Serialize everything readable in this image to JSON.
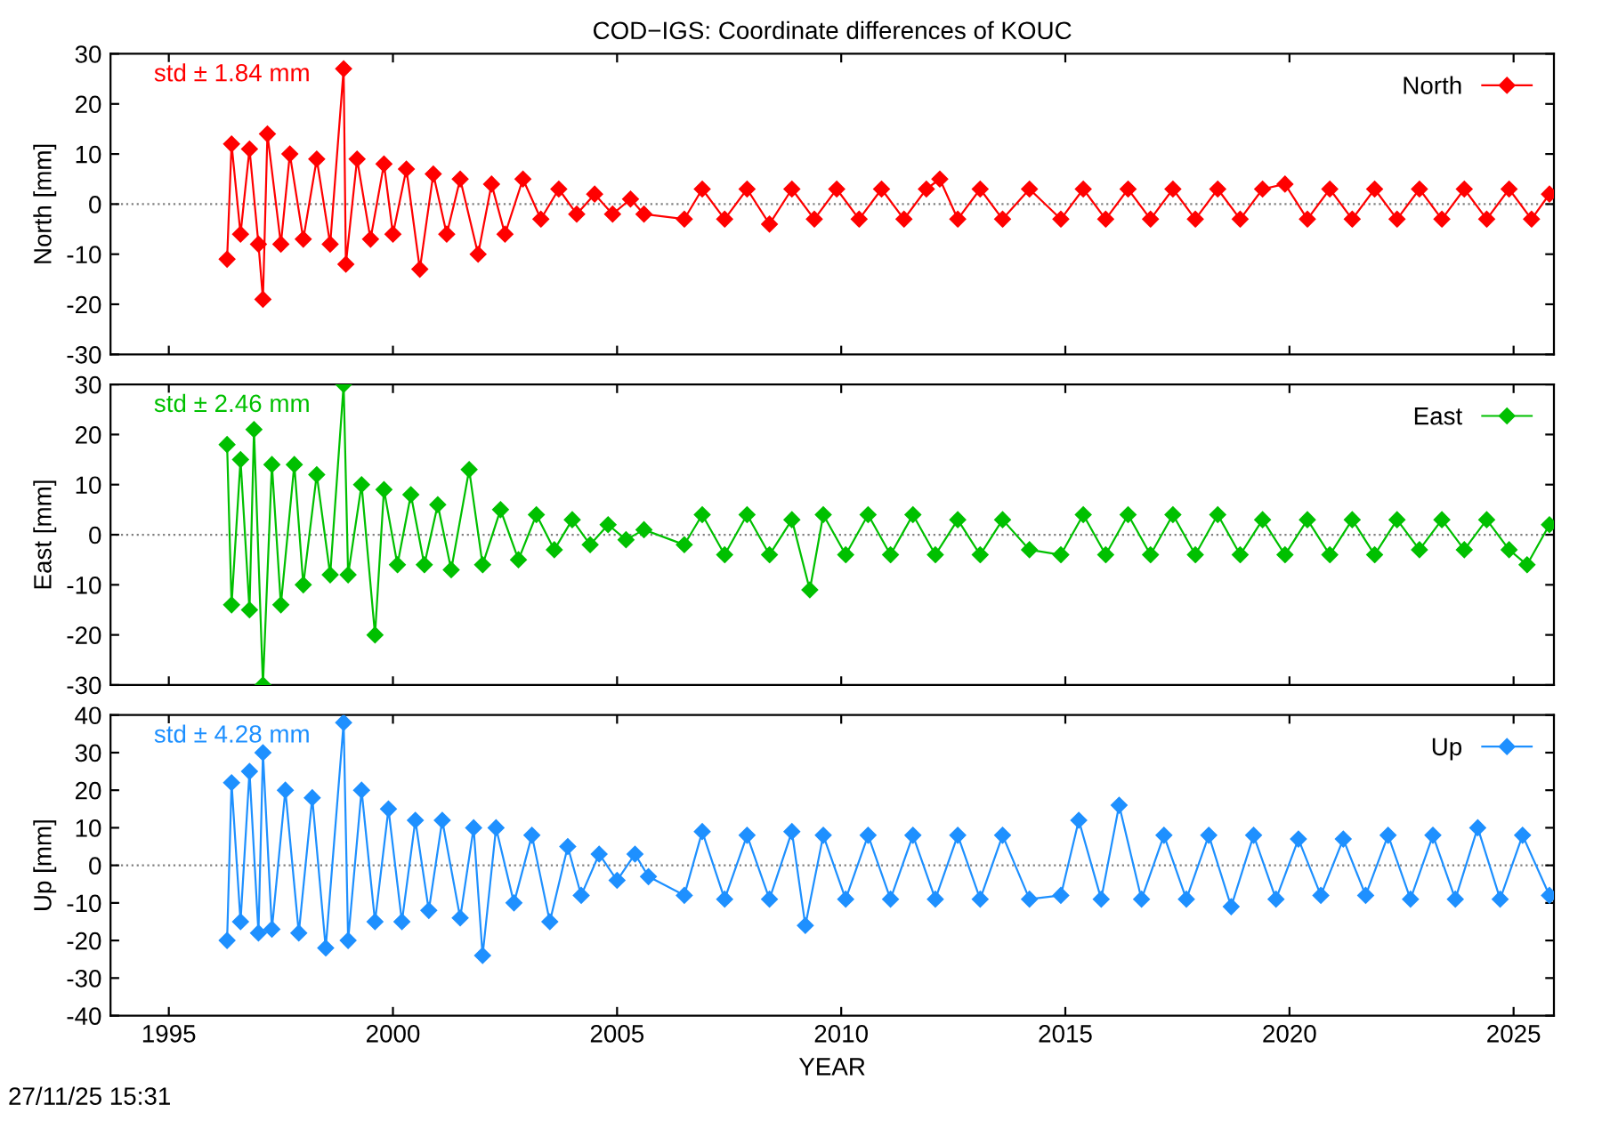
{
  "chart_data": [
    {
      "type": "line",
      "title": "COD−IGS: Coordinate differences of KOUC",
      "ylabel": "North [mm]",
      "xlim": [
        1993.7,
        2025.9
      ],
      "xticks": [
        1995,
        2000,
        2005,
        2010,
        2015,
        2020,
        2025
      ],
      "ylim": [
        -30,
        30
      ],
      "yticks": [
        -30,
        -20,
        -10,
        0,
        10,
        20,
        30
      ],
      "tick_labels": "y",
      "marker": "diamond",
      "legend": "top right",
      "grid": false,
      "annotations": [
        "std ± 1.84 mm"
      ],
      "ref_lines": [
        {
          "axis": "y",
          "value": 0,
          "line_style": "dotted",
          "color": "#808080"
        }
      ],
      "series": [
        {
          "name": "North",
          "color": "#ff0000",
          "x": [
            1996.3,
            1996.4,
            1996.6,
            1996.8,
            1997.0,
            1997.1,
            1997.2,
            1997.5,
            1997.7,
            1998.0,
            1998.3,
            1998.6,
            1998.9,
            1998.95,
            1999.2,
            1999.5,
            1999.8,
            2000.0,
            2000.3,
            2000.6,
            2000.9,
            2001.2,
            2001.5,
            2001.9,
            2002.2,
            2002.5,
            2002.9,
            2003.3,
            2003.7,
            2004.1,
            2004.5,
            2004.9,
            2005.3,
            2005.6,
            2006.5,
            2006.9,
            2007.4,
            2007.9,
            2008.4,
            2008.9,
            2009.4,
            2009.9,
            2010.4,
            2010.9,
            2011.4,
            2011.9,
            2012.2,
            2012.6,
            2013.1,
            2013.6,
            2014.2,
            2014.9,
            2015.4,
            2015.9,
            2016.4,
            2016.9,
            2017.4,
            2017.9,
            2018.4,
            2018.9,
            2019.4,
            2019.9,
            2020.4,
            2020.9,
            2021.4,
            2021.9,
            2022.4,
            2022.9,
            2023.4,
            2023.9,
            2024.4,
            2024.9,
            2025.4,
            2025.8
          ],
          "values": [
            -11,
            12,
            -6,
            11,
            -8,
            -19,
            14,
            -8,
            10,
            -7,
            9,
            -8,
            27,
            -12,
            9,
            -7,
            8,
            -6,
            7,
            -13,
            6,
            -6,
            5,
            -10,
            4,
            -6,
            5,
            -3,
            3,
            -2,
            2,
            -2,
            1,
            -2,
            -3,
            3,
            -3,
            3,
            -4,
            3,
            -3,
            3,
            -3,
            3,
            -3,
            3,
            5,
            -3,
            3,
            -3,
            3,
            -3,
            3,
            -3,
            3,
            -3,
            3,
            -3,
            3,
            -3,
            3,
            4,
            -3,
            3,
            -3,
            3,
            -3,
            3,
            -3,
            3,
            -3,
            3,
            -3,
            2
          ]
        }
      ]
    },
    {
      "type": "line",
      "ylabel": "East [mm]",
      "xlim": [
        1993.7,
        2025.9
      ],
      "xticks": [
        1995,
        2000,
        2005,
        2010,
        2015,
        2020,
        2025
      ],
      "ylim": [
        -30,
        30
      ],
      "yticks": [
        -30,
        -20,
        -10,
        0,
        10,
        20,
        30
      ],
      "tick_labels": "y",
      "marker": "diamond",
      "legend": "top right",
      "grid": false,
      "annotations": [
        "std ± 2.46 mm"
      ],
      "ref_lines": [
        {
          "axis": "y",
          "value": 0,
          "line_style": "dotted",
          "color": "#808080"
        }
      ],
      "series": [
        {
          "name": "East",
          "color": "#00c000",
          "x": [
            1996.3,
            1996.4,
            1996.6,
            1996.8,
            1996.9,
            1997.1,
            1997.3,
            1997.5,
            1997.8,
            1998.0,
            1998.3,
            1998.6,
            1998.9,
            1999.0,
            1999.3,
            1999.6,
            1999.8,
            2000.1,
            2000.4,
            2000.7,
            2001.0,
            2001.3,
            2001.7,
            2002.0,
            2002.4,
            2002.8,
            2003.2,
            2003.6,
            2004.0,
            2004.4,
            2004.8,
            2005.2,
            2005.6,
            2006.5,
            2006.9,
            2007.4,
            2007.9,
            2008.4,
            2008.9,
            2009.3,
            2009.6,
            2010.1,
            2010.6,
            2011.1,
            2011.6,
            2012.1,
            2012.6,
            2013.1,
            2013.6,
            2014.2,
            2014.9,
            2015.4,
            2015.9,
            2016.4,
            2016.9,
            2017.4,
            2017.9,
            2018.4,
            2018.9,
            2019.4,
            2019.9,
            2020.4,
            2020.9,
            2021.4,
            2021.9,
            2022.4,
            2022.9,
            2023.4,
            2023.9,
            2024.4,
            2024.9,
            2025.3,
            2025.8
          ],
          "values": [
            18,
            -14,
            15,
            -15,
            21,
            -30,
            14,
            -14,
            14,
            -10,
            12,
            -8,
            30,
            -8,
            10,
            -20,
            9,
            -6,
            8,
            -6,
            6,
            -7,
            13,
            -6,
            5,
            -5,
            4,
            -3,
            3,
            -2,
            2,
            -1,
            1,
            -2,
            4,
            -4,
            4,
            -4,
            3,
            -11,
            4,
            -4,
            4,
            -4,
            4,
            -4,
            3,
            -4,
            3,
            -3,
            -4,
            4,
            -4,
            4,
            -4,
            4,
            -4,
            4,
            -4,
            3,
            -4,
            3,
            -4,
            3,
            -4,
            3,
            -3,
            3,
            -3,
            3,
            -3,
            -6,
            2
          ]
        }
      ]
    },
    {
      "type": "line",
      "ylabel": "Up [mm]",
      "xlabel": "YEAR",
      "xlim": [
        1993.7,
        2025.9
      ],
      "xticks": [
        1995,
        2000,
        2005,
        2010,
        2015,
        2020,
        2025
      ],
      "ylim": [
        -40,
        40
      ],
      "yticks": [
        -40,
        -30,
        -20,
        -10,
        0,
        10,
        20,
        30,
        40
      ],
      "marker": "diamond",
      "legend": "top right",
      "grid": false,
      "annotations": [
        "std ± 4.28 mm",
        "27/11/25 15:31"
      ],
      "ref_lines": [
        {
          "axis": "y",
          "value": 0,
          "line_style": "dotted",
          "color": "#808080"
        }
      ],
      "series": [
        {
          "name": "Up",
          "color": "#1e90ff",
          "x": [
            1996.3,
            1996.4,
            1996.6,
            1996.8,
            1997.0,
            1997.1,
            1997.3,
            1997.6,
            1997.9,
            1998.2,
            1998.5,
            1998.9,
            1999.0,
            1999.3,
            1999.6,
            1999.9,
            2000.2,
            2000.5,
            2000.8,
            2001.1,
            2001.5,
            2001.8,
            2002.0,
            2002.3,
            2002.7,
            2003.1,
            2003.5,
            2003.9,
            2004.2,
            2004.6,
            2005.0,
            2005.4,
            2005.7,
            2006.5,
            2006.9,
            2007.4,
            2007.9,
            2008.4,
            2008.9,
            2009.2,
            2009.6,
            2010.1,
            2010.6,
            2011.1,
            2011.6,
            2012.1,
            2012.6,
            2013.1,
            2013.6,
            2014.2,
            2014.9,
            2015.3,
            2015.8,
            2016.2,
            2016.7,
            2017.2,
            2017.7,
            2018.2,
            2018.7,
            2019.2,
            2019.7,
            2020.2,
            2020.7,
            2021.2,
            2021.7,
            2022.2,
            2022.7,
            2023.2,
            2023.7,
            2024.2,
            2024.7,
            2025.2,
            2025.8
          ],
          "values": [
            -20,
            22,
            -15,
            25,
            -18,
            30,
            -17,
            20,
            -18,
            18,
            -22,
            38,
            -20,
            20,
            -15,
            15,
            -15,
            12,
            -12,
            12,
            -14,
            10,
            -24,
            10,
            -10,
            8,
            -15,
            5,
            -8,
            3,
            -4,
            3,
            -3,
            -8,
            9,
            -9,
            8,
            -9,
            9,
            -16,
            8,
            -9,
            8,
            -9,
            8,
            -9,
            8,
            -9,
            8,
            -9,
            -8,
            12,
            -9,
            16,
            -9,
            8,
            -9,
            8,
            -11,
            8,
            -9,
            7,
            -8,
            7,
            -8,
            8,
            -9,
            8,
            -9,
            10,
            -9,
            8,
            -8
          ]
        }
      ]
    }
  ]
}
